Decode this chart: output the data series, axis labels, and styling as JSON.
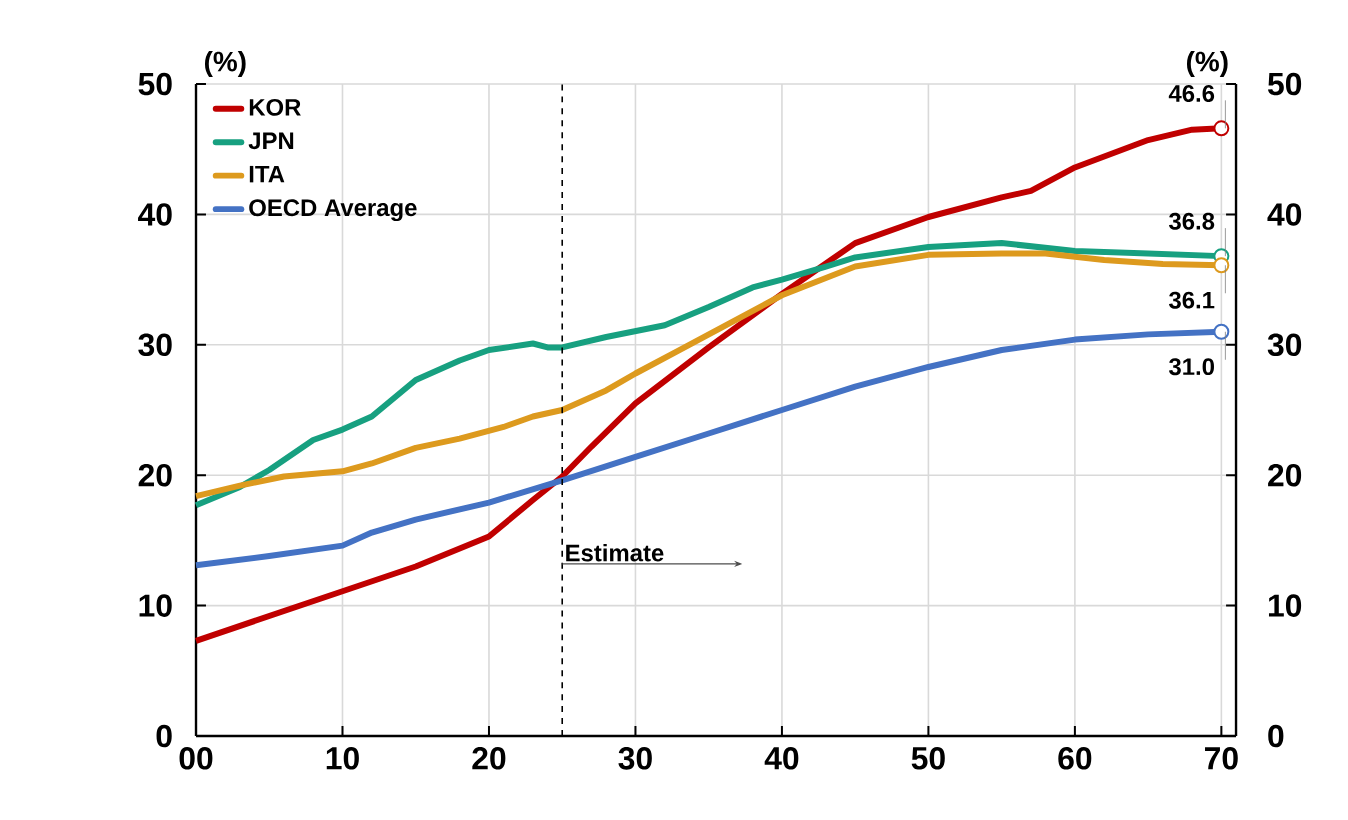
{
  "chart_data": {
    "type": "line",
    "ylabel": "(%)",
    "y2label": "(%)",
    "xlim": [
      0,
      71
    ],
    "xticks": [
      {
        "value": 0,
        "label": "00"
      },
      10,
      20,
      30,
      40,
      50,
      60,
      70
    ],
    "ylim": [
      0,
      50
    ],
    "yticks": [
      0,
      10,
      20,
      30,
      40,
      50
    ],
    "y2lim": [
      0,
      50
    ],
    "y2ticks": [
      0,
      10,
      20,
      30,
      40,
      50
    ],
    "grid": true,
    "legend": "top left",
    "ref_lines": [
      {
        "axis": "x",
        "value": 25,
        "label": "Estimate",
        "line_style": "dashed"
      }
    ],
    "series": [
      {
        "name": "KOR",
        "color": "#c00000",
        "x": [
          0,
          5,
          10,
          15,
          20,
          23,
          25,
          27,
          30,
          35,
          40,
          45,
          48,
          50,
          55,
          57,
          60,
          65,
          68,
          70
        ],
        "values": [
          7.3,
          9.2,
          11.1,
          13.0,
          15.3,
          18.1,
          19.9,
          22.2,
          25.5,
          29.8,
          33.9,
          37.8,
          39.0,
          39.8,
          41.3,
          41.8,
          43.6,
          45.7,
          46.5,
          46.6
        ],
        "value_labels": [
          null,
          null,
          null,
          null,
          null,
          null,
          null,
          null,
          null,
          null,
          null,
          null,
          null,
          null,
          null,
          null,
          null,
          null,
          null,
          "46.6"
        ]
      },
      {
        "name": "JPN",
        "color": "#17a080",
        "x": [
          0,
          3,
          5,
          8,
          10,
          12,
          15,
          18,
          20,
          23,
          24,
          25,
          28,
          32,
          35,
          38,
          40,
          43,
          45,
          50,
          55,
          60,
          65,
          70
        ],
        "values": [
          17.7,
          19.1,
          20.4,
          22.7,
          23.5,
          24.5,
          27.3,
          28.8,
          29.6,
          30.1,
          29.8,
          29.8,
          30.6,
          31.5,
          32.9,
          34.4,
          35.0,
          36.0,
          36.7,
          37.5,
          37.8,
          37.2,
          37.0,
          36.8
        ],
        "value_labels": [
          null,
          null,
          null,
          null,
          null,
          null,
          null,
          null,
          null,
          null,
          null,
          null,
          null,
          null,
          null,
          null,
          null,
          null,
          null,
          null,
          null,
          null,
          null,
          "36.8"
        ]
      },
      {
        "name": "ITA",
        "color": "#dd9a1e",
        "x": [
          0,
          3,
          6,
          10,
          12,
          15,
          18,
          21,
          23,
          25,
          28,
          30,
          33,
          36,
          40,
          45,
          50,
          55,
          58,
          62,
          66,
          70
        ],
        "values": [
          18.4,
          19.2,
          19.9,
          20.3,
          20.9,
          22.1,
          22.8,
          23.7,
          24.5,
          25.0,
          26.5,
          27.8,
          29.6,
          31.4,
          33.8,
          36.0,
          36.9,
          37.0,
          37.0,
          36.5,
          36.2,
          36.1
        ],
        "value_labels": [
          null,
          null,
          null,
          null,
          null,
          null,
          null,
          null,
          null,
          null,
          null,
          null,
          null,
          null,
          null,
          null,
          null,
          null,
          null,
          null,
          null,
          "36.1"
        ]
      },
      {
        "name": "OECD Average",
        "color": "#4472c4",
        "x": [
          0,
          5,
          10,
          12,
          15,
          20,
          25,
          30,
          35,
          40,
          45,
          50,
          55,
          60,
          65,
          70
        ],
        "values": [
          13.1,
          13.8,
          14.6,
          15.6,
          16.6,
          17.9,
          19.6,
          21.4,
          23.2,
          25.0,
          26.8,
          28.3,
          29.6,
          30.4,
          30.8,
          31.0
        ],
        "value_labels": [
          null,
          null,
          null,
          null,
          null,
          null,
          null,
          null,
          null,
          null,
          null,
          null,
          null,
          null,
          null,
          "31.0"
        ]
      }
    ]
  }
}
